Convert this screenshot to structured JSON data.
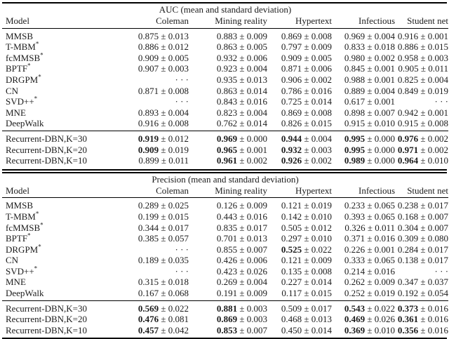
{
  "page": {
    "background": "#ffffff",
    "text_color": "#1c1c1c",
    "rule_color": "#000000"
  },
  "dots_glyph": "· · ·",
  "plus_minus_glyph": "±",
  "chart_data": {
    "type": "table"
  },
  "tables": [
    {
      "id": "auc",
      "title": "AUC (mean and standard deviation)",
      "columns": [
        "Model",
        "Coleman",
        "Mining reality",
        "Hypertext",
        "Infectious",
        "Student net"
      ],
      "body_rows": [
        {
          "model": "MMSB",
          "sup": "",
          "cells": [
            {
              "mean": "0.875",
              "std": "0.013",
              "bold": false
            },
            {
              "mean": "0.883",
              "std": "0.009",
              "bold": false
            },
            {
              "mean": "0.869",
              "std": "0.008",
              "bold": false
            },
            {
              "mean": "0.969",
              "std": "0.004",
              "bold": false
            },
            {
              "mean": "0.916",
              "std": "0.001",
              "bold": false
            }
          ]
        },
        {
          "model": "T-MBM",
          "sup": "*",
          "cells": [
            {
              "mean": "0.886",
              "std": "0.012",
              "bold": false
            },
            {
              "mean": "0.863",
              "std": "0.005",
              "bold": false
            },
            {
              "mean": "0.797",
              "std": "0.009",
              "bold": false
            },
            {
              "mean": "0.833",
              "std": "0.018",
              "bold": false
            },
            {
              "mean": "0.886",
              "std": "0.015",
              "bold": false
            }
          ]
        },
        {
          "model": "fcMMSB",
          "sup": "*",
          "cells": [
            {
              "mean": "0.909",
              "std": "0.005",
              "bold": false
            },
            {
              "mean": "0.932",
              "std": "0.006",
              "bold": false
            },
            {
              "mean": "0.909",
              "std": "0.005",
              "bold": false
            },
            {
              "mean": "0.980",
              "std": "0.002",
              "bold": false
            },
            {
              "mean": "0.958",
              "std": "0.003",
              "bold": false
            }
          ]
        },
        {
          "model": "BPTF",
          "sup": "*",
          "cells": [
            {
              "mean": "0.907",
              "std": "0.003",
              "bold": false
            },
            {
              "mean": "0.923",
              "std": "0.004",
              "bold": false
            },
            {
              "mean": "0.871",
              "std": "0.006",
              "bold": false
            },
            {
              "mean": "0.845",
              "std": "0.001",
              "bold": false
            },
            {
              "mean": "0.905",
              "std": "0.011",
              "bold": false
            }
          ]
        },
        {
          "model": "DRGPM",
          "sup": "*",
          "cells": [
            {
              "dots": true
            },
            {
              "mean": "0.935",
              "std": "0.013",
              "bold": false
            },
            {
              "mean": "0.906",
              "std": "0.002",
              "bold": false
            },
            {
              "mean": "0.988",
              "std": "0.001",
              "bold": false
            },
            {
              "mean": "0.825",
              "std": "0.004",
              "bold": false
            }
          ]
        },
        {
          "model": "CN",
          "sup": "",
          "cells": [
            {
              "mean": "0.871",
              "std": "0.008",
              "bold": false
            },
            {
              "mean": "0.863",
              "std": "0.014",
              "bold": false
            },
            {
              "mean": "0.786",
              "std": "0.016",
              "bold": false
            },
            {
              "mean": "0.889",
              "std": "0.004",
              "bold": false
            },
            {
              "mean": "0.849",
              "std": "0.019",
              "bold": false
            }
          ]
        },
        {
          "model": "SVD++",
          "sup": "*",
          "cells": [
            {
              "dots": true
            },
            {
              "mean": "0.843",
              "std": "0.016",
              "bold": false
            },
            {
              "mean": "0.725",
              "std": "0.014",
              "bold": false
            },
            {
              "mean": "0.617",
              "std": "0.001",
              "bold": false
            },
            {
              "dots": true
            }
          ]
        },
        {
          "model": "MNE",
          "sup": "",
          "cells": [
            {
              "mean": "0.893",
              "std": "0.004",
              "bold": false
            },
            {
              "mean": "0.823",
              "std": "0.004",
              "bold": false
            },
            {
              "mean": "0.869",
              "std": "0.008",
              "bold": false
            },
            {
              "mean": "0.898",
              "std": "0.007",
              "bold": false
            },
            {
              "mean": "0.942",
              "std": "0.001",
              "bold": false
            }
          ]
        },
        {
          "model": "DeepWalk",
          "sup": "",
          "cells": [
            {
              "mean": "0.916",
              "std": "0.008",
              "bold": false
            },
            {
              "mean": "0.762",
              "std": "0.014",
              "bold": false
            },
            {
              "mean": "0.826",
              "std": "0.015",
              "bold": false
            },
            {
              "mean": "0.915",
              "std": "0.010",
              "bold": false
            },
            {
              "mean": "0.915",
              "std": "0.008",
              "bold": false
            }
          ]
        }
      ],
      "footer_rows": [
        {
          "model": "Recurrent-DBN,K=30",
          "sup": "",
          "cells": [
            {
              "mean": "0.919",
              "std": "0.012",
              "bold": true
            },
            {
              "mean": "0.969",
              "std": "0.000",
              "bold": true
            },
            {
              "mean": "0.944",
              "std": "0.004",
              "bold": true
            },
            {
              "mean": "0.995",
              "std": "0.000",
              "bold": true
            },
            {
              "mean": "0.976",
              "std": "0.002",
              "bold": true
            }
          ]
        },
        {
          "model": "Recurrent-DBN,K=20",
          "sup": "",
          "cells": [
            {
              "mean": "0.909",
              "std": "0.019",
              "bold": true
            },
            {
              "mean": "0.965",
              "std": "0.001",
              "bold": true
            },
            {
              "mean": "0.932",
              "std": "0.003",
              "bold": true
            },
            {
              "mean": "0.995",
              "std": "0.000",
              "bold": true
            },
            {
              "mean": "0.971",
              "std": "0.002",
              "bold": true
            }
          ]
        },
        {
          "model": "Recurrent-DBN,K=10",
          "sup": "",
          "cells": [
            {
              "mean": "0.899",
              "std": "0.011",
              "bold": false
            },
            {
              "mean": "0.961",
              "std": "0.002",
              "bold": true
            },
            {
              "mean": "0.926",
              "std": "0.002",
              "bold": true
            },
            {
              "mean": "0.989",
              "std": "0.000",
              "bold": true
            },
            {
              "mean": "0.964",
              "std": "0.010",
              "bold": true
            }
          ]
        }
      ]
    },
    {
      "id": "precision",
      "title": "Precision (mean and standard deviation)",
      "columns": [
        "Model",
        "Coleman",
        "Mining reality",
        "Hypertext",
        "Infectious",
        "Student net"
      ],
      "body_rows": [
        {
          "model": "MMSB",
          "sup": "",
          "cells": [
            {
              "mean": "0.289",
              "std": "0.025",
              "bold": false
            },
            {
              "mean": "0.126",
              "std": "0.009",
              "bold": false
            },
            {
              "mean": "0.121",
              "std": "0.019",
              "bold": false
            },
            {
              "mean": "0.233",
              "std": "0.065",
              "bold": false
            },
            {
              "mean": "0.238",
              "std": "0.017",
              "bold": false
            }
          ]
        },
        {
          "model": "T-MBM",
          "sup": "*",
          "cells": [
            {
              "mean": "0.199",
              "std": "0.015",
              "bold": false
            },
            {
              "mean": "0.443",
              "std": "0.016",
              "bold": false
            },
            {
              "mean": "0.142",
              "std": "0.010",
              "bold": false
            },
            {
              "mean": "0.393",
              "std": "0.065",
              "bold": false
            },
            {
              "mean": "0.168",
              "std": "0.007",
              "bold": false
            }
          ]
        },
        {
          "model": "fcMMSB",
          "sup": "*",
          "cells": [
            {
              "mean": "0.344",
              "std": "0.017",
              "bold": false
            },
            {
              "mean": "0.835",
              "std": "0.017",
              "bold": false
            },
            {
              "mean": "0.505",
              "std": "0.012",
              "bold": false
            },
            {
              "mean": "0.326",
              "std": "0.011",
              "bold": false
            },
            {
              "mean": "0.304",
              "std": "0.007",
              "bold": false
            }
          ]
        },
        {
          "model": "BPTF",
          "sup": "*",
          "cells": [
            {
              "mean": "0.385",
              "std": "0.057",
              "bold": false
            },
            {
              "mean": "0.701",
              "std": "0.013",
              "bold": false
            },
            {
              "mean": "0.297",
              "std": "0.010",
              "bold": false
            },
            {
              "mean": "0.371",
              "std": "0.016",
              "bold": false
            },
            {
              "mean": "0.309",
              "std": "0.080",
              "bold": false
            }
          ]
        },
        {
          "model": "DRGPM",
          "sup": "*",
          "cells": [
            {
              "dots": true
            },
            {
              "mean": "0.855",
              "std": "0.007",
              "bold": false
            },
            {
              "mean": "0.525",
              "std": "0.022",
              "bold": true
            },
            {
              "mean": "0.226",
              "std": "0.001",
              "bold": false
            },
            {
              "mean": "0.284",
              "std": "0.017",
              "bold": false
            }
          ]
        },
        {
          "model": "CN",
          "sup": "",
          "cells": [
            {
              "mean": "0.189",
              "std": "0.035",
              "bold": false
            },
            {
              "mean": "0.426",
              "std": "0.006",
              "bold": false
            },
            {
              "mean": "0.121",
              "std": "0.009",
              "bold": false
            },
            {
              "mean": "0.333",
              "std": "0.065",
              "bold": false
            },
            {
              "mean": "0.138",
              "std": "0.017",
              "bold": false
            }
          ]
        },
        {
          "model": "SVD++",
          "sup": "*",
          "cells": [
            {
              "dots": true
            },
            {
              "mean": "0.423",
              "std": "0.026",
              "bold": false
            },
            {
              "mean": "0.135",
              "std": "0.008",
              "bold": false
            },
            {
              "mean": "0.214",
              "std": "0.016",
              "bold": false
            },
            {
              "dots": true
            }
          ]
        },
        {
          "model": "MNE",
          "sup": "",
          "cells": [
            {
              "mean": "0.315",
              "std": "0.018",
              "bold": false
            },
            {
              "mean": "0.269",
              "std": "0.004",
              "bold": false
            },
            {
              "mean": "0.227",
              "std": "0.014",
              "bold": false
            },
            {
              "mean": "0.262",
              "std": "0.009",
              "bold": false
            },
            {
              "mean": "0.347",
              "std": "0.037",
              "bold": false
            }
          ]
        },
        {
          "model": "DeepWalk",
          "sup": "",
          "cells": [
            {
              "mean": "0.167",
              "std": "0.068",
              "bold": false
            },
            {
              "mean": "0.191",
              "std": "0.009",
              "bold": false
            },
            {
              "mean": "0.117",
              "std": "0.015",
              "bold": false
            },
            {
              "mean": "0.252",
              "std": "0.019",
              "bold": false
            },
            {
              "mean": "0.192",
              "std": "0.054",
              "bold": false
            }
          ]
        }
      ],
      "footer_rows": [
        {
          "model": "Recurrent-DBN,K=30",
          "sup": "",
          "cells": [
            {
              "mean": "0.569",
              "std": "0.022",
              "bold": true
            },
            {
              "mean": "0.881",
              "std": "0.003",
              "bold": true
            },
            {
              "mean": "0.509",
              "std": "0.017",
              "bold": false
            },
            {
              "mean": "0.543",
              "std": "0.022",
              "bold": true
            },
            {
              "mean": "0.373",
              "std": "0.016",
              "bold": true
            }
          ]
        },
        {
          "model": "Recurrent-DBN,K=20",
          "sup": "",
          "cells": [
            {
              "mean": "0.476",
              "std": "0.081",
              "bold": true
            },
            {
              "mean": "0.869",
              "std": "0.003",
              "bold": true
            },
            {
              "mean": "0.468",
              "std": "0.013",
              "bold": false
            },
            {
              "mean": "0.469",
              "std": "0.026",
              "bold": true
            },
            {
              "mean": "0.361",
              "std": "0.016",
              "bold": true
            }
          ]
        },
        {
          "model": "Recurrent-DBN,K=10",
          "sup": "",
          "cells": [
            {
              "mean": "0.457",
              "std": "0.042",
              "bold": true
            },
            {
              "mean": "0.853",
              "std": "0.007",
              "bold": true
            },
            {
              "mean": "0.450",
              "std": "0.014",
              "bold": false
            },
            {
              "mean": "0.369",
              "std": "0.010",
              "bold": true
            },
            {
              "mean": "0.356",
              "std": "0.016",
              "bold": true
            }
          ]
        }
      ]
    }
  ]
}
